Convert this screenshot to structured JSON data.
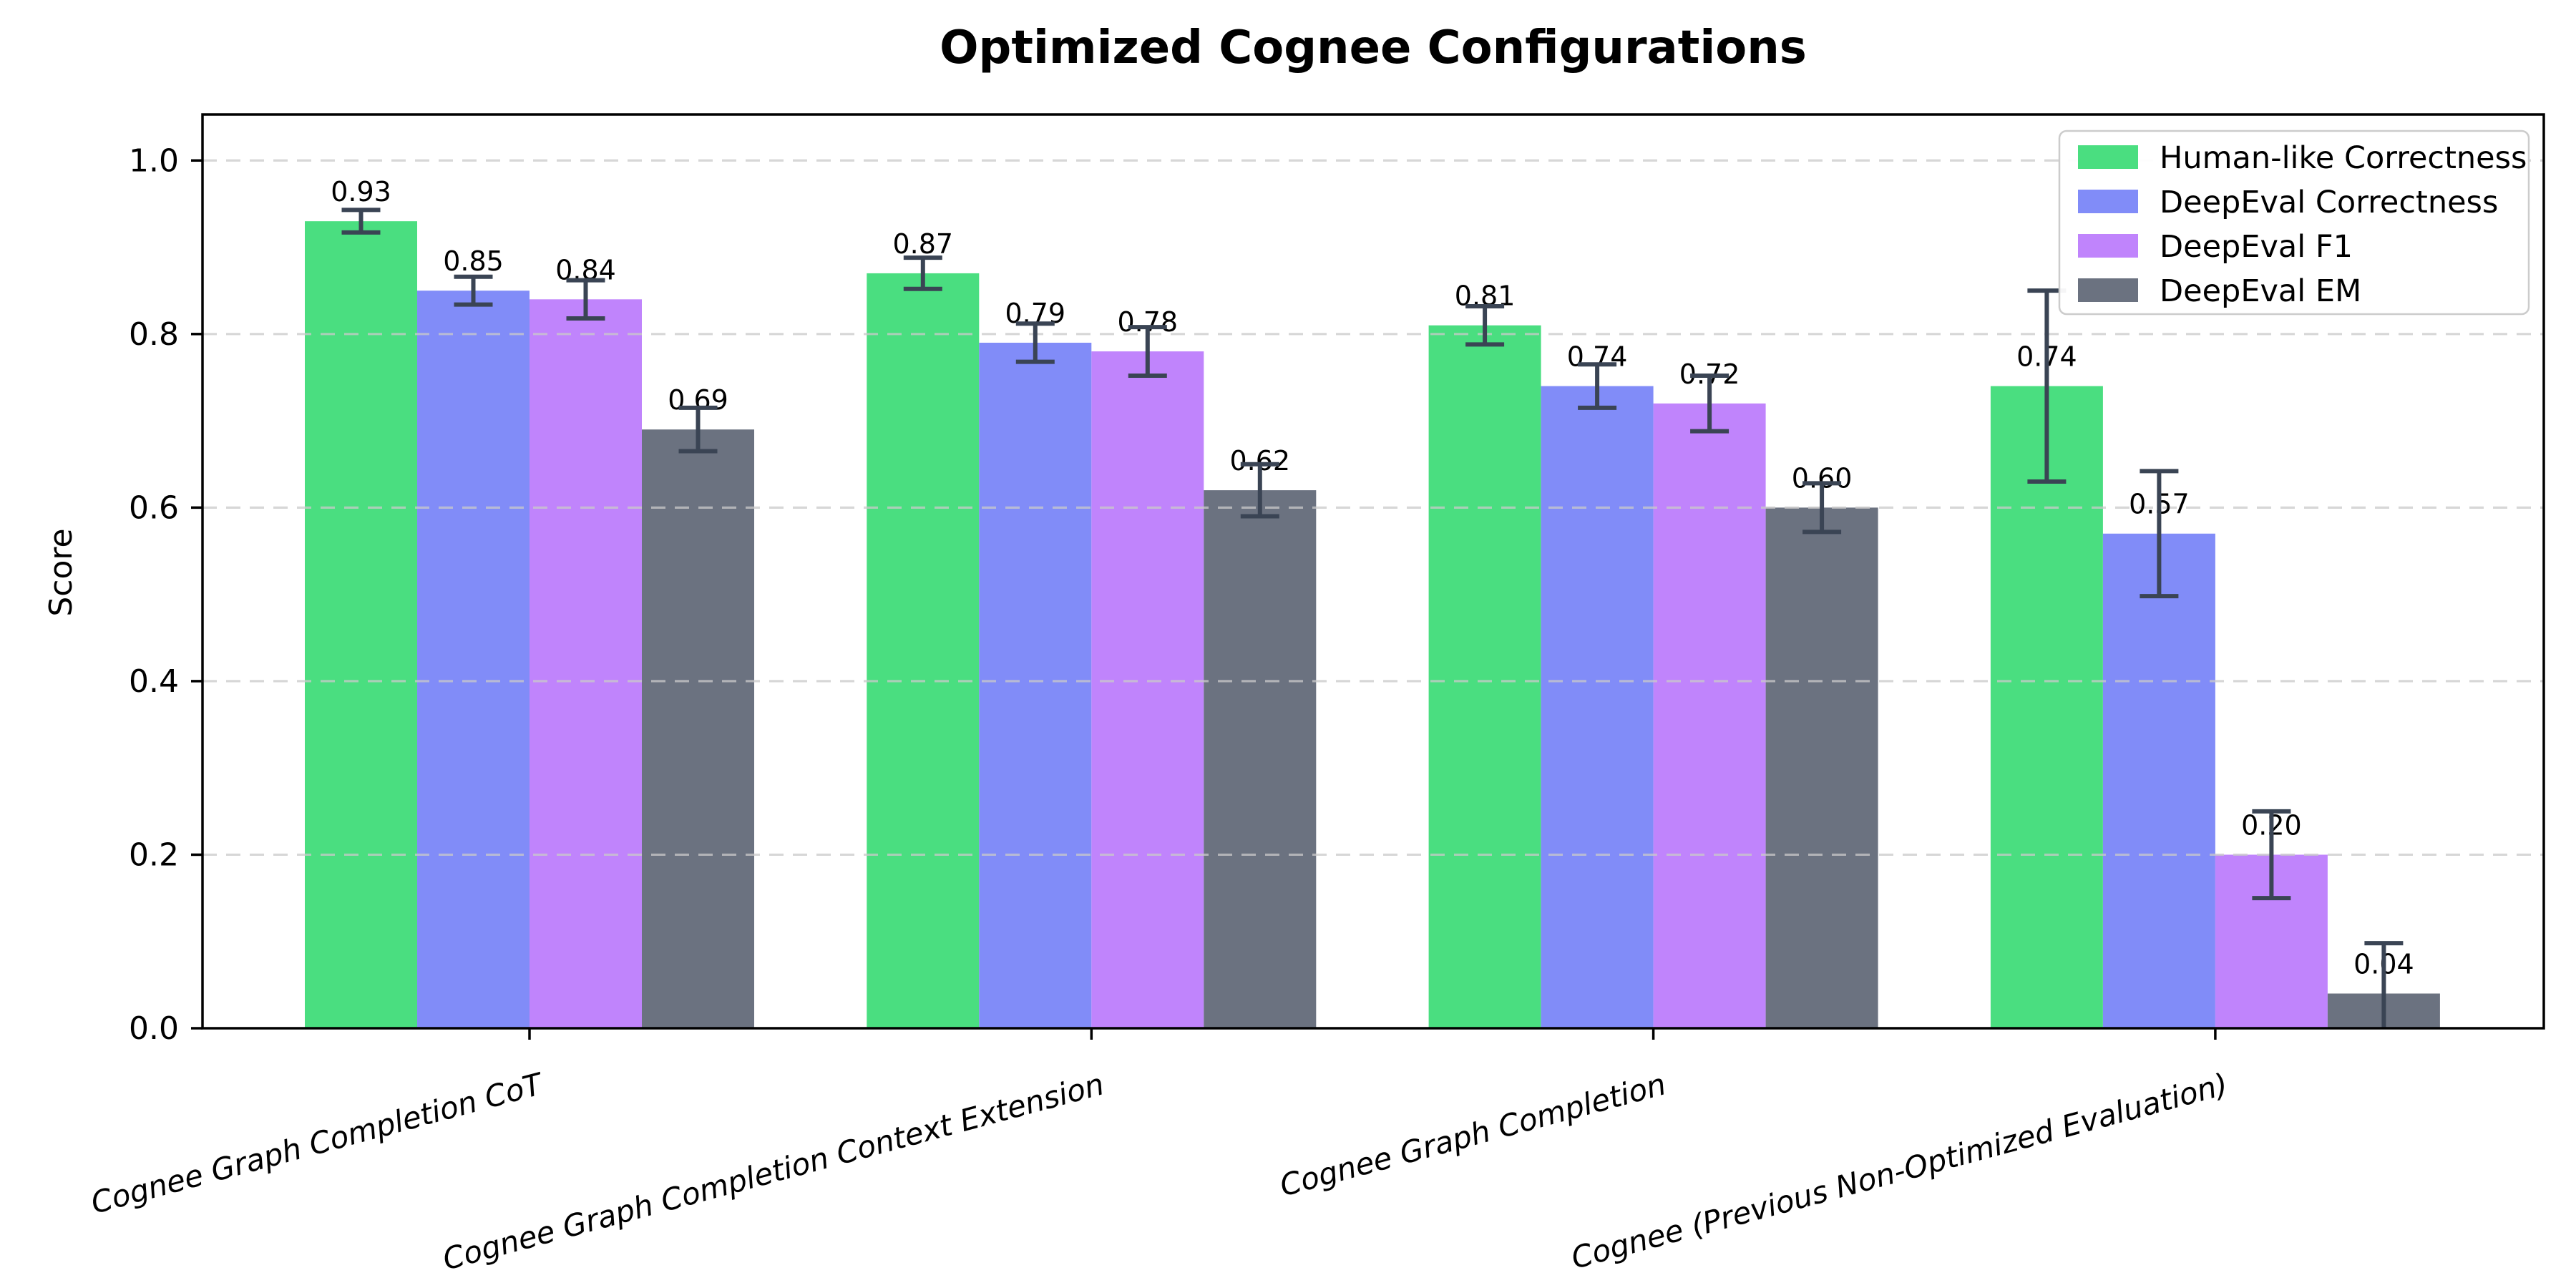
{
  "chart_data": {
    "type": "bar",
    "title": "Optimized Cognee Configurations",
    "xlabel": "",
    "ylabel": "Score",
    "categories": [
      "Cognee Graph Completion CoT",
      "Cognee Graph Completion Context Extension",
      "Cognee Graph Completion",
      "Cognee (Previous Non-Optimized Evaluation)"
    ],
    "series": [
      {
        "name": "Human-like Correctness",
        "color": "#4ade80",
        "values": [
          0.93,
          0.87,
          0.81,
          0.74
        ],
        "errors": [
          0.013,
          0.018,
          0.022,
          0.11
        ]
      },
      {
        "name": "DeepEval Correctness",
        "color": "#818cf8",
        "values": [
          0.85,
          0.79,
          0.74,
          0.57
        ],
        "errors": [
          0.016,
          0.022,
          0.025,
          0.072
        ]
      },
      {
        "name": "DeepEval F1",
        "color": "#c084fc",
        "values": [
          0.84,
          0.78,
          0.72,
          0.2
        ],
        "errors": [
          0.022,
          0.028,
          0.032,
          0.05
        ]
      },
      {
        "name": "DeepEval EM",
        "color": "#6b7280",
        "values": [
          0.69,
          0.62,
          0.6,
          0.04
        ],
        "errors": [
          0.025,
          0.03,
          0.028,
          0.058
        ]
      }
    ],
    "bar_value_labels": [
      [
        "0.93",
        "0.87",
        "0.81",
        "0.74"
      ],
      [
        "0.85",
        "0.79",
        "0.74",
        "0.57"
      ],
      [
        "0.84",
        "0.78",
        "0.72",
        "0.20"
      ],
      [
        "0.69",
        "0.62",
        "0.60",
        "0.04"
      ]
    ],
    "yticks": [
      "0.0",
      "0.2",
      "0.4",
      "0.6",
      "0.8",
      "1.0"
    ],
    "ylim": [
      0,
      1.053
    ],
    "grid": true,
    "grid_style": "dashed",
    "grid_color": "#c9c9c9",
    "error_bar_color": "#3a4454",
    "spine_color": "#000000",
    "legend_position": "upper right",
    "legend_labels": [
      "Human-like Correctness",
      "DeepEval Correctness",
      "DeepEval F1",
      "DeepEval EM"
    ]
  }
}
